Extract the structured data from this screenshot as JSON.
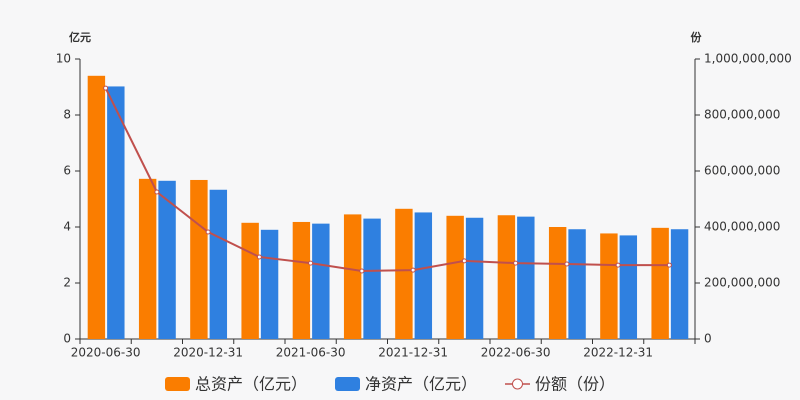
{
  "chart_data": {
    "type": "bar-line",
    "y_label": "亿元",
    "y2_label": "份",
    "categories": [
      "2020-06-30",
      null,
      "2020-12-31",
      null,
      "2021-06-30",
      null,
      "2021-12-31",
      null,
      "2022-06-30",
      null,
      "2022-12-31",
      null
    ],
    "series": [
      {
        "name": "总资产（亿元）",
        "type": "bar",
        "color": "#fa7d00",
        "values": [
          9.4,
          5.72,
          5.68,
          4.15,
          4.18,
          4.45,
          4.65,
          4.4,
          4.42,
          4.0,
          3.77,
          3.97
        ]
      },
      {
        "name": "净资产（亿元）",
        "type": "bar",
        "color": "#2f80e0",
        "values": [
          9.02,
          5.65,
          5.33,
          3.9,
          4.12,
          4.3,
          4.52,
          4.33,
          4.37,
          3.92,
          3.7,
          3.92
        ]
      },
      {
        "name": "份额（份）",
        "type": "line",
        "axis": "y2",
        "color": "#c0504d",
        "values": [
          896000000,
          525000000,
          382000000,
          293000000,
          271000000,
          243000000,
          246000000,
          279000000,
          271000000,
          268000000,
          264000000,
          264000000
        ]
      }
    ],
    "ylim": [
      0,
      10
    ],
    "yticks": [
      0,
      2,
      4,
      6,
      8,
      10
    ],
    "y2lim": [
      0,
      1000000000
    ],
    "y2ticks": [
      0,
      {
        "value": 200000000,
        "label": "200,000,000"
      },
      {
        "value": 400000000,
        "label": "400,000,000"
      },
      {
        "value": 600000000,
        "label": "600,000,000"
      },
      {
        "value": 800000000,
        "label": "800,000,000"
      },
      {
        "value": 1000000000,
        "label": "1,000,000,000"
      }
    ],
    "legend": "bottom"
  }
}
